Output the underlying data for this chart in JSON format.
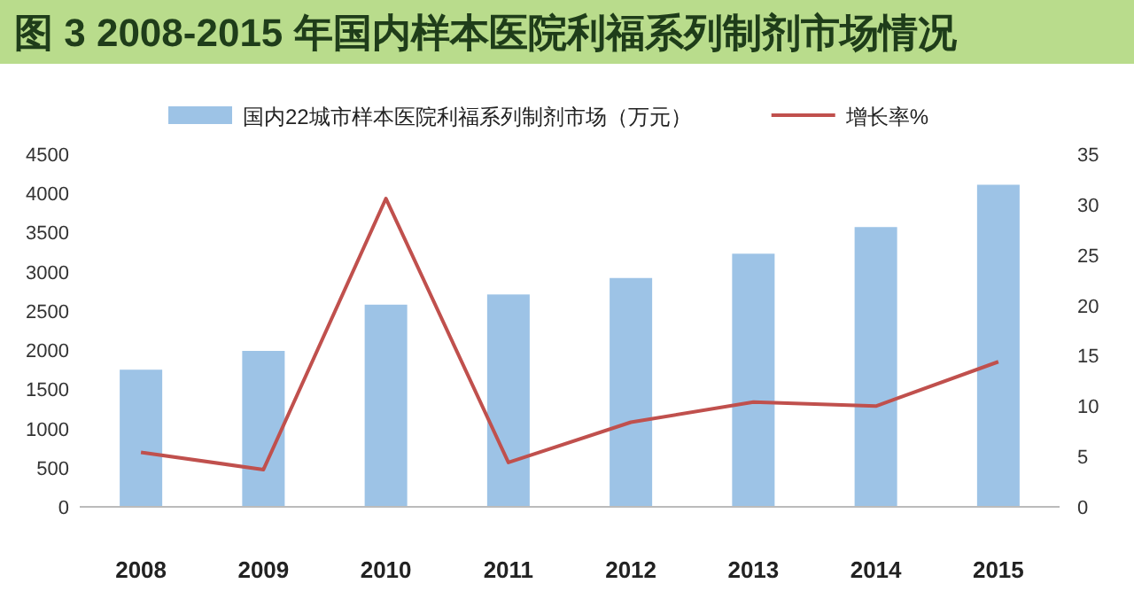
{
  "chart_data": {
    "type": "bar",
    "title": "图 3  2008-2015 年国内样本医院利福系列制剂市场情况",
    "categories": [
      "2008",
      "2009",
      "2010",
      "2011",
      "2012",
      "2013",
      "2014",
      "2015"
    ],
    "series": [
      {
        "name": "国内22城市样本医院利福系列制剂市场（万元）",
        "color": "#9dc3e6",
        "values": [
          1750,
          1990,
          2580,
          2710,
          2920,
          3230,
          3570,
          4110
        ]
      },
      {
        "name": "增长率%",
        "type": "line",
        "axis": "y2",
        "color": "#c0504d",
        "values": [
          5.4,
          3.7,
          30.6,
          4.4,
          8.4,
          10.4,
          10.0,
          14.4
        ]
      }
    ],
    "ylim": [
      0,
      4500
    ],
    "yticks": [
      0,
      500,
      1000,
      1500,
      2000,
      2500,
      3000,
      3500,
      4000,
      4500
    ],
    "y2lim": [
      0,
      35
    ],
    "y2ticks": [
      0,
      5,
      10,
      15,
      20,
      25,
      30,
      35
    ],
    "legend": "top",
    "grid": false
  }
}
